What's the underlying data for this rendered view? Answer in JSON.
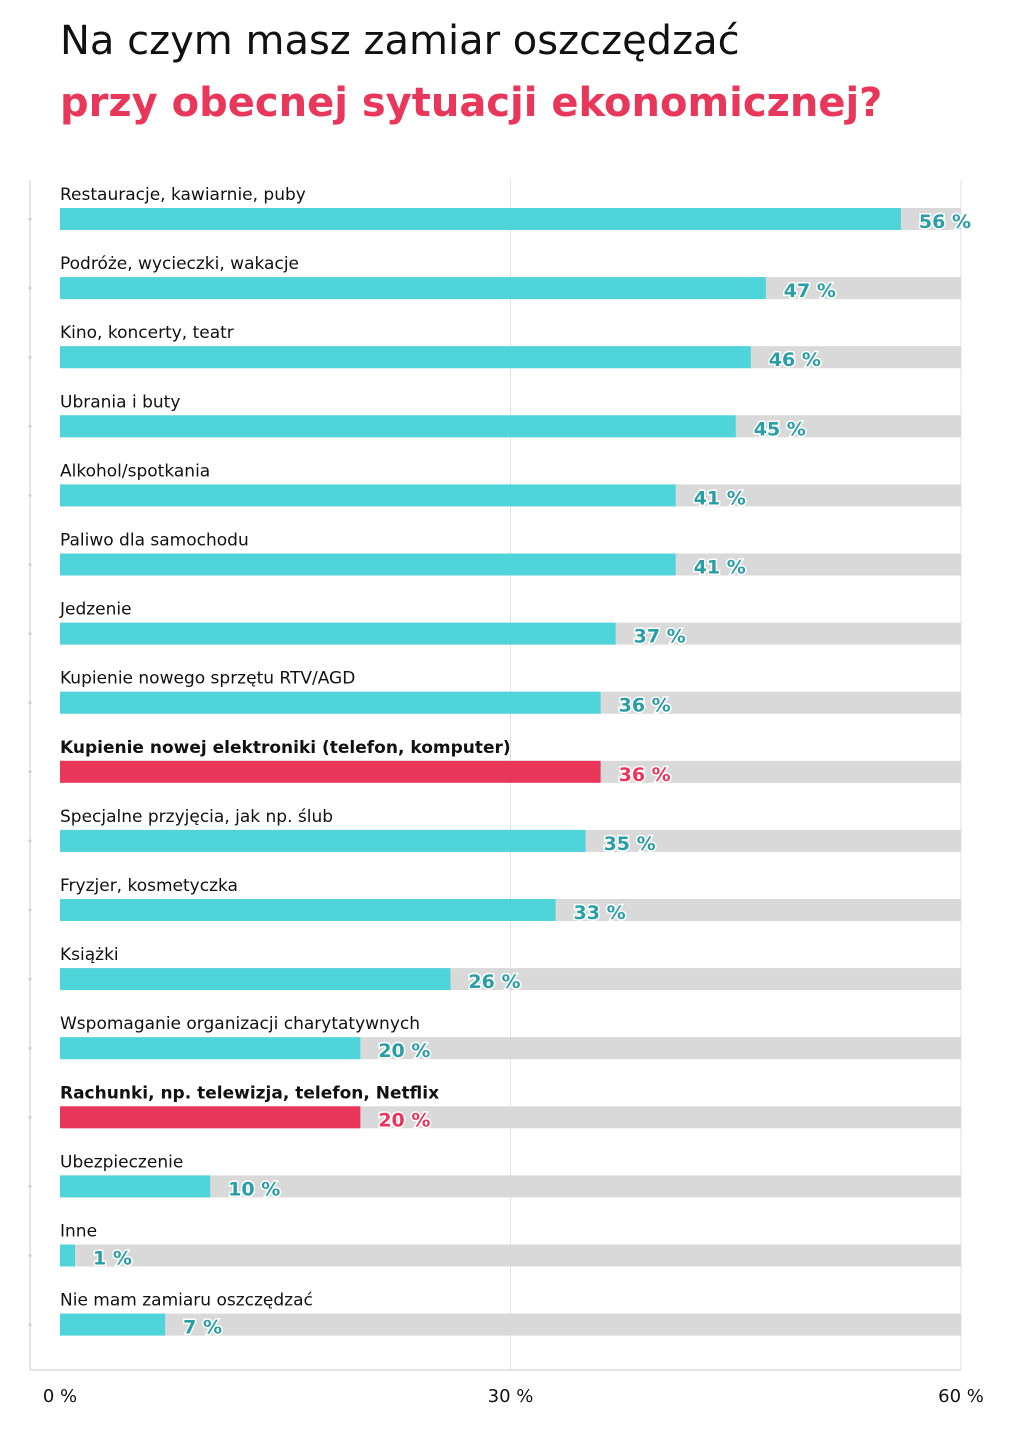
{
  "title": {
    "line1": "Na czym masz zamiar oszczędzać",
    "line2": "przy obecnej sytuacji ekonomicznej?"
  },
  "colors": {
    "bar": "#4fd4da",
    "highlight": "#e8375a",
    "track": "#d9d9d9",
    "value_label": "#2a9ea5",
    "grid": "#e2e2e2",
    "axis": "#cccccc"
  },
  "chart_data": {
    "type": "bar",
    "orientation": "horizontal",
    "categories": [
      "Restauracje, kawiarnie, puby",
      "Podróże, wycieczki, wakacje",
      "Kino, koncerty, teatr",
      "Ubrania i buty",
      "Alkohol/spotkania",
      "Paliwo dla samochodu",
      "Jedzenie",
      "Kupienie nowego sprzętu RTV/AGD",
      "Kupienie nowej elektroniki (telefon, komputer)",
      "Specjalne przyjęcia, jak np. ślub",
      "Fryzjer, kosmetyczka",
      "Książki",
      "Wspomaganie organizacji charytatywnych",
      "Rachunki, np. telewizja, telefon, Netflix",
      "Ubezpieczenie",
      "Inne",
      "Nie mam zamiaru oszczędzać"
    ],
    "values": [
      56,
      47,
      46,
      45,
      41,
      41,
      37,
      36,
      36,
      35,
      33,
      26,
      20,
      20,
      10,
      1,
      7
    ],
    "value_labels": [
      "56 %",
      "47 %",
      "46 %",
      "45 %",
      "41 %",
      "41 %",
      "37 %",
      "36 %",
      "36 %",
      "35 %",
      "33 %",
      "26 %",
      "20 %",
      "20 %",
      "10 %",
      "1 %",
      "7 %"
    ],
    "highlighted": [
      false,
      false,
      false,
      false,
      false,
      false,
      false,
      false,
      true,
      false,
      false,
      false,
      false,
      true,
      false,
      false,
      false
    ],
    "xlim": [
      0,
      60
    ],
    "xticks": [
      "0 %",
      "30 %",
      "60 %"
    ],
    "xtick_values": [
      0,
      30,
      60
    ],
    "grid": true
  }
}
